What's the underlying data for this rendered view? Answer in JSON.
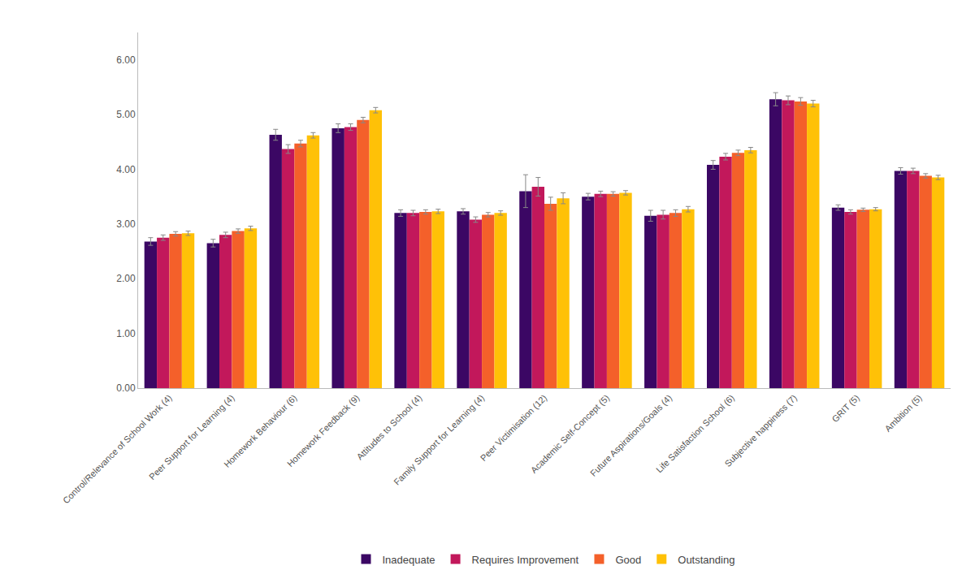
{
  "chart_data": {
    "type": "bar",
    "categories": [
      "Control/Relevance of School Work (4)",
      "Peer Support for Learning (4)",
      "Homework Behaviour (6)",
      "Homework Feedback (9)",
      "Attitudes to School (4)",
      "Family Support for Learning (4)",
      "Peer Victimisation (12)",
      "Academic Self-Concept (5)",
      "Future Aspirations/Goals (4)",
      "Life Satisfaction School (6)",
      "Subjective happiness (7)",
      "GRIT (5)",
      "Ambition (5)"
    ],
    "series": [
      {
        "name": "Inadequate",
        "color": "#3b0764",
        "values": [
          2.68,
          2.65,
          4.63,
          4.75,
          3.2,
          3.23,
          3.6,
          3.5,
          3.15,
          4.08,
          5.28,
          3.3,
          3.97
        ],
        "errors": [
          0.07,
          0.07,
          0.1,
          0.08,
          0.06,
          0.05,
          0.3,
          0.06,
          0.1,
          0.08,
          0.12,
          0.05,
          0.06
        ]
      },
      {
        "name": "Requires Improvement",
        "color": "#c2185b",
        "values": [
          2.75,
          2.8,
          4.37,
          4.77,
          3.2,
          3.08,
          3.68,
          3.55,
          3.17,
          4.23,
          5.26,
          3.22,
          3.97
        ],
        "errors": [
          0.05,
          0.05,
          0.08,
          0.06,
          0.05,
          0.05,
          0.17,
          0.05,
          0.08,
          0.06,
          0.08,
          0.04,
          0.05
        ]
      },
      {
        "name": "Good",
        "color": "#f4602a",
        "values": [
          2.82,
          2.87,
          4.47,
          4.9,
          3.22,
          3.17,
          3.37,
          3.55,
          3.2,
          4.3,
          5.24,
          3.26,
          3.88
        ],
        "errors": [
          0.04,
          0.04,
          0.06,
          0.05,
          0.04,
          0.04,
          0.12,
          0.04,
          0.06,
          0.05,
          0.07,
          0.03,
          0.04
        ]
      },
      {
        "name": "Outstanding",
        "color": "#ffc107",
        "values": [
          2.83,
          2.92,
          4.62,
          5.08,
          3.23,
          3.2,
          3.47,
          3.57,
          3.27,
          4.35,
          5.2,
          3.27,
          3.85
        ],
        "errors": [
          0.04,
          0.04,
          0.05,
          0.05,
          0.04,
          0.04,
          0.1,
          0.04,
          0.05,
          0.05,
          0.06,
          0.03,
          0.04
        ]
      }
    ],
    "ylim": [
      0.0,
      6.5
    ],
    "yticks": [
      {
        "value": 0.0,
        "label": "0.00"
      },
      {
        "value": 1.0,
        "label": "1.00"
      },
      {
        "value": 2.0,
        "label": "2.00"
      },
      {
        "value": 3.0,
        "label": "3.00"
      },
      {
        "value": 4.0,
        "label": "4.00"
      },
      {
        "value": 5.0,
        "label": "5.00"
      },
      {
        "value": 6.0,
        "label": "6.00"
      }
    ],
    "grid": false,
    "legend": "bottom"
  }
}
